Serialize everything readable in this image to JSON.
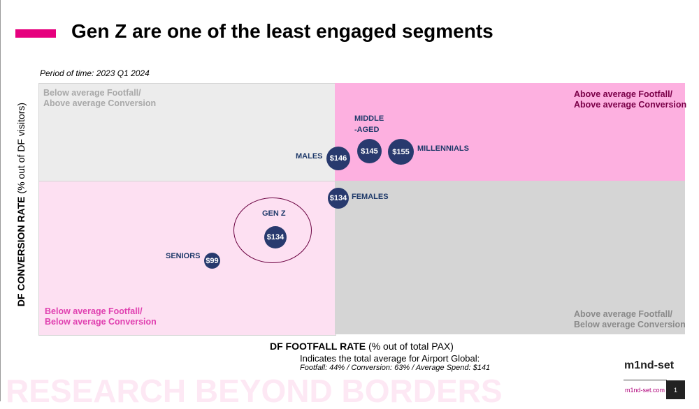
{
  "title": "Gen Z are one of the least engaged segments",
  "period": "Period of time: 2023 Q1 2024",
  "colors": {
    "accent": "#e6007e",
    "bubble": "#283a6e"
  },
  "chart_data": {
    "type": "scatter",
    "xlabel_bold": "DF FOOTFALL RATE",
    "xlabel_rest": " (% out of total PAX)",
    "ylabel_bold": "DF CONVERSION RATE",
    "ylabel_rest": " (% out of DF visitors)",
    "quadrants": {
      "top_left": [
        "Below average Footfall/",
        "Above average Conversion"
      ],
      "top_right": [
        "Above average Footfall/",
        "Above average Conversion"
      ],
      "bottom_left": [
        "Below average Footfall/",
        "Below average Conversion"
      ],
      "bottom_right": [
        "Above average Footfall/",
        "Below average Conversion"
      ]
    },
    "points": [
      {
        "segment": "MALES",
        "spend": "$146"
      },
      {
        "segment": "MIDDLE",
        "segment2": "-AGED",
        "spend": "$145"
      },
      {
        "segment": "MILLENNIALS",
        "spend": "$155"
      },
      {
        "segment": "FEMALES",
        "spend": "$134"
      },
      {
        "segment": "GEN Z",
        "spend": "$134"
      },
      {
        "segment": "SENIORS",
        "spend": "$99"
      }
    ],
    "highlight": "GEN Z"
  },
  "footer": {
    "note": "Indicates the total average for Airport Global:",
    "averages": "Footfall: 44% / Conversion: 63% / Average Spend: $141",
    "watermark": "RESEARCH BEYOND BORDERS",
    "logo": "m1nd-set",
    "site": "m1nd-set.com",
    "page": "1"
  }
}
